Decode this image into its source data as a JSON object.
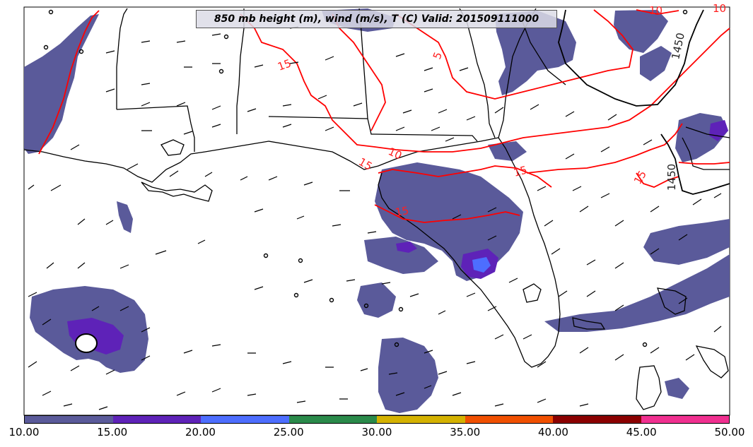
{
  "title": "850 mb height (m), wind (m/s), T (C) Valid: 201509111000",
  "contour_labels": {
    "height_1450_a": "1450",
    "height_1450_b": "1450",
    "temp_10_a": "10",
    "temp_10_b": "10",
    "temp_10_c": "10",
    "temp_15_a": "15",
    "temp_15_b": "15",
    "temp_15_c": "15",
    "temp_15_d": "15",
    "temp_5": "5",
    "temp_15_e": "15"
  },
  "colorbar": {
    "colors": [
      "#5a5a9a",
      "#5e22b8",
      "#4d6eff",
      "#2a8a4a",
      "#d4b200",
      "#f05000",
      "#8b0000",
      "#f03090"
    ],
    "ticks": [
      "10.00",
      "15.00",
      "20.00",
      "25.00",
      "30.00",
      "35.00",
      "40.00",
      "45.00",
      "50.00"
    ]
  },
  "colors": {
    "precip": "#5a5a9a",
    "precip_heavy": "#5e22b8",
    "precip_heavier": "#4d6eff",
    "temp_contour": "#ff0000",
    "height_contour": "#000000"
  }
}
